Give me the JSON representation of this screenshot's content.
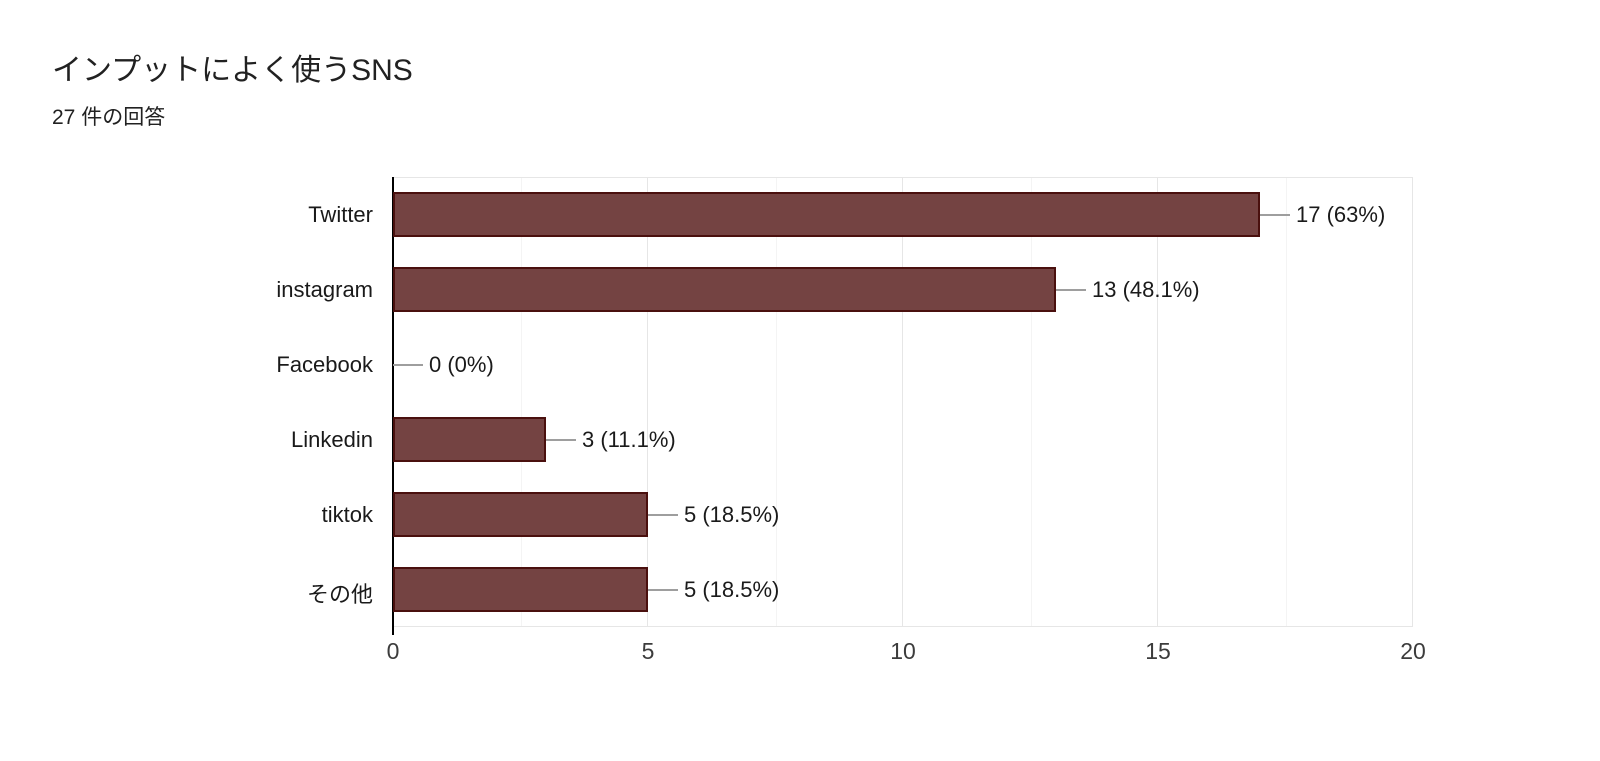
{
  "header": {
    "title": "インプットによく使うSNS",
    "response_count": "27 件の回答"
  },
  "chart_data": {
    "type": "bar",
    "orientation": "horizontal",
    "title": "インプットによく使うSNS",
    "subtitle": "27 件の回答",
    "categories": [
      "Twitter",
      "instagram",
      "Facebook",
      "Linkedin",
      "tiktok",
      "その他"
    ],
    "values": [
      17,
      13,
      0,
      3,
      5,
      5
    ],
    "value_labels": [
      "17 (63%)",
      "13 (48.1%)",
      "0 (0%)",
      "3 (11.1%)",
      "5 (18.5%)",
      "5 (18.5%)"
    ],
    "xlabel": "",
    "ylabel": "",
    "xlim": [
      0,
      20
    ],
    "x_ticks": [
      "0",
      "5",
      "10",
      "15",
      "20"
    ],
    "x_tick_values": [
      0,
      5,
      10,
      15,
      20
    ],
    "minor_gridline_values": [
      2.5,
      7.5,
      12.5,
      17.5
    ],
    "grid": true,
    "legend": "none",
    "colors": {
      "bar_fill": "#744342",
      "bar_border": "#4a100e",
      "connector": "#9e9e9e",
      "axis": "#000000",
      "gridline_major": "#e6e6e6",
      "gridline_minor": "#f4f4f4",
      "title_text": "#212121",
      "label_text": "#1a1a1a",
      "tick_text": "#3c3c3c"
    }
  }
}
